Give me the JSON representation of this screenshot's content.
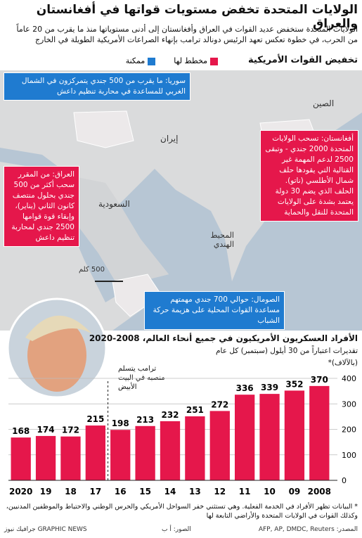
{
  "header": {
    "title": "الولايات المتحدة تخفض مستويات قواتها في أفغانستان والعراق",
    "subtitle": "الولايات المتحدة ستخفض عديد القوات في العراق وأفغانستان إلى أدنى مستوياتها منذ ما يقرب من 20 عاماً من الحرب، في خطوة تعكس تعهد الرئيس دونالد ترامب بإنهاء الصراعات الأمريكية الطويلة في الخارج"
  },
  "map": {
    "title": "تخفيض القوات الأمريكية",
    "legend": [
      {
        "label": "مخطط لها",
        "color": "#e5174b"
      },
      {
        "label": "ممكنة",
        "color": "#1f7bd0"
      }
    ],
    "callouts": [
      {
        "text": "سوريا: ما يقرب من 500 جندي يتمركزون في الشمال الغربي للمساعدة في محاربة تنظيم داعش",
        "color": "#1f7bd0"
      },
      {
        "text": "العراق: من المقرر سحب أكثر من 500 جندي بحلول منتصف كانون الثاني (يناير)، وإبقاء قوة قوامها 2500 جندي لمحاربة تنظيم داعش",
        "color": "#e5174b"
      },
      {
        "text": "أفغانستان: تسحب الولايات المتحدة 2000 جندي - وتبقى 2500 لدعم المهمة غير القتالية التي يقودها حلف شمال الأطلسي (ناتو). الحلف الذي يضم 30 دولة يعتمد بشدة على الولايات المتحدة للنقل والحماية",
        "color": "#e5174b"
      },
      {
        "text": "الصومال: حوالي 700 جندي مهمتهم مساعدة القوات المحلية على هزيمة حركة الشباب",
        "color": "#1f7bd0"
      }
    ],
    "places": [
      "الصين",
      "إيران",
      "السعودية",
      "المحيط الهندي"
    ],
    "scale": "500 كلم"
  },
  "chart_data": {
    "type": "bar",
    "title": "الأفراد العسكريون الأمريكيون في جميع أنحاء العالم، 2008-2020",
    "subtitle": "تقديرات اعتباراً من 30 أيلول (سبتمبر) كل عام",
    "unit": "(بالآلاف)*",
    "annotation": "ترامب يتسلم منصبه في البيت الأبيض",
    "categories": [
      "2020",
      "19",
      "18",
      "17",
      "16",
      "15",
      "14",
      "13",
      "12",
      "11",
      "10",
      "09",
      "2008"
    ],
    "values": [
      168,
      174,
      172,
      215,
      198,
      213,
      232,
      251,
      272,
      336,
      339,
      352,
      370
    ],
    "color": "#e5174b",
    "ylim": [
      0,
      400
    ],
    "yticks": [
      0,
      100,
      200,
      300,
      400
    ],
    "grid": true
  },
  "footer": {
    "note": "* البيانات تظهر الأفراد في الخدمة الفعلية. وهي تستثني خفر السواحل الأمريكي والحرس الوطني والاحتياط والموظفين المدنيين، وكذلك القوات في الولايات المتحدة والأراضي التابعة لها",
    "source": "المصدر: AFP, AP, DMDC, Reuters",
    "photo": "الصور: أ ب",
    "credit": "GRAPHIC NEWS جرافيك نيوز"
  }
}
